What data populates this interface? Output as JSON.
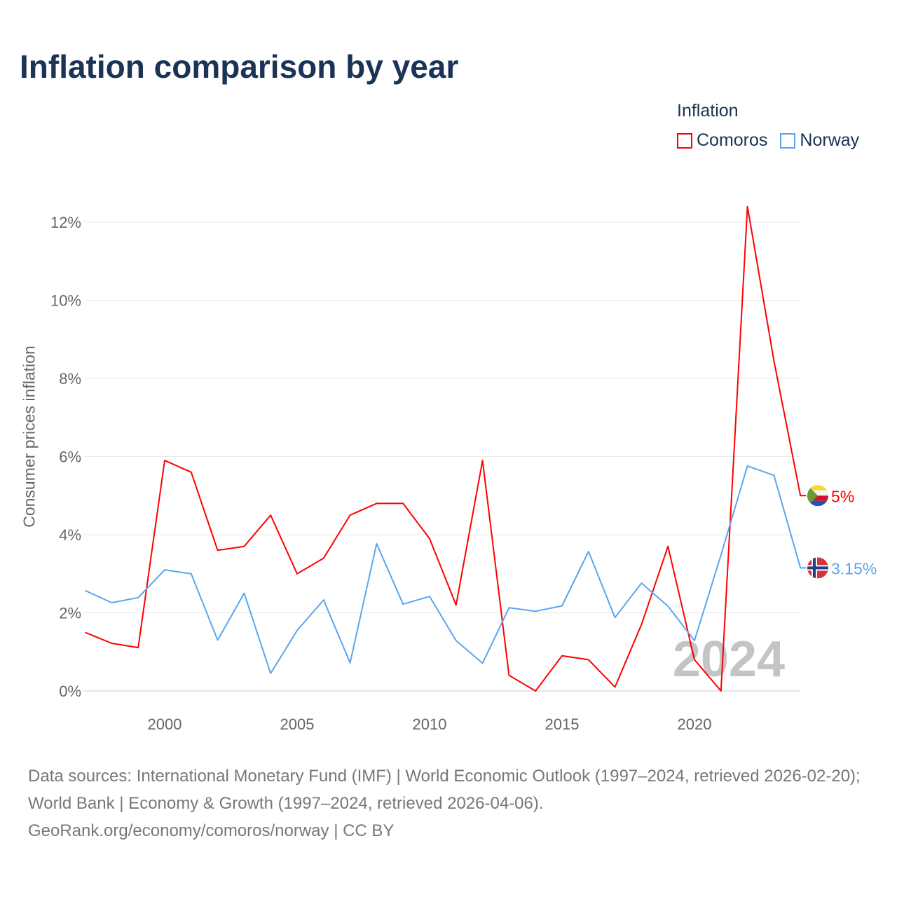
{
  "title": "Inflation comparison by year",
  "legend": {
    "title": "Inflation",
    "items": [
      "Comoros",
      "Norway"
    ]
  },
  "footer": {
    "sources": "Data sources: International Monetary Fund (IMF) | World Economic Outlook (1997–2024, retrieved 2026-02-20); World Bank | Economy & Growth (1997–2024, retrieved 2026-04-06).",
    "credit": "GeoRank.org/economy/comoros/norway | CC BY"
  },
  "chart_data": {
    "type": "line",
    "title": "Inflation comparison by year",
    "xlabel": "",
    "ylabel": "Consumer prices inflation",
    "x": [
      1997,
      1998,
      1999,
      2000,
      2001,
      2002,
      2003,
      2004,
      2005,
      2006,
      2007,
      2008,
      2009,
      2010,
      2011,
      2012,
      2013,
      2014,
      2015,
      2016,
      2017,
      2018,
      2019,
      2020,
      2021,
      2022,
      2023,
      2024
    ],
    "xticks": [
      2000,
      2005,
      2010,
      2015,
      2020
    ],
    "xlim": [
      1997,
      2024
    ],
    "yticks": [
      0,
      2,
      4,
      6,
      8,
      10,
      12
    ],
    "ytick_labels": [
      "0%",
      "2%",
      "4%",
      "6%",
      "8%",
      "10%",
      "12%"
    ],
    "ylim": [
      0,
      12.5
    ],
    "grid": true,
    "legend_position": "top-right",
    "annotation": "2024",
    "series": [
      {
        "name": "Comoros",
        "color": "#ff0000",
        "end_label": "5%",
        "values": [
          1.5,
          1.22,
          1.11,
          5.9,
          5.6,
          3.6,
          3.7,
          4.5,
          3.0,
          3.4,
          4.5,
          4.8,
          4.8,
          3.9,
          2.2,
          5.9,
          0.4,
          0.0,
          0.9,
          0.8,
          0.1,
          1.7,
          3.7,
          0.8,
          0.0,
          12.4,
          8.45,
          5.0
        ]
      },
      {
        "name": "Norway",
        "color": "#5aa5ee",
        "end_label": "3.15%",
        "values": [
          2.57,
          2.26,
          2.39,
          3.1,
          3.0,
          1.3,
          2.5,
          0.45,
          1.55,
          2.33,
          0.72,
          3.77,
          2.22,
          2.42,
          1.29,
          0.71,
          2.13,
          2.04,
          2.18,
          3.57,
          1.88,
          2.76,
          2.17,
          1.29,
          3.48,
          5.76,
          5.52,
          3.15
        ]
      }
    ]
  }
}
